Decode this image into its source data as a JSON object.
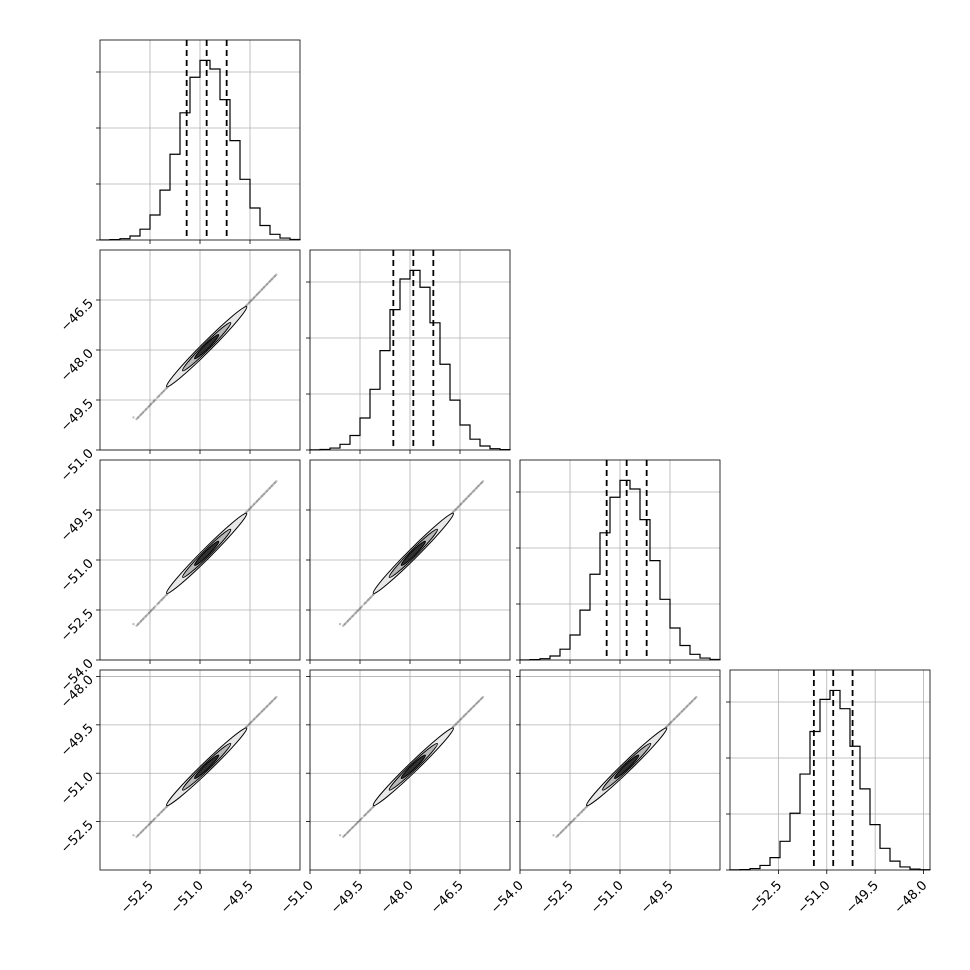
{
  "chart_data": {
    "type": "corner",
    "grid": true,
    "colors": {
      "hist": "#000000",
      "quantile": "#000000",
      "grid": "#b0b0b0",
      "density": "#000000"
    },
    "parameters": [
      {
        "range": [
          -54.0,
          -48.0
        ],
        "ticks": [
          -52.5,
          -51.0,
          -49.5
        ],
        "tick_labels": [
          "−52.5",
          "−51.0",
          "−49.5"
        ],
        "center": -50.8,
        "sigma": 0.6,
        "quantiles": [
          -51.4,
          -50.8,
          -50.2
        ]
      },
      {
        "range": [
          -51.0,
          -45.0
        ],
        "ticks": [
          -51.0,
          -49.5,
          -48.0,
          -46.5
        ],
        "tick_labels": [
          "−51.0",
          "−49.5",
          "−48.0",
          "−46.5"
        ],
        "center": -47.9,
        "sigma": 0.6,
        "quantiles": [
          -48.5,
          -47.9,
          -47.3
        ]
      },
      {
        "range": [
          -54.0,
          -48.0
        ],
        "ticks": [
          -54.0,
          -52.5,
          -51.0,
          -49.5
        ],
        "tick_labels": [
          "−54.0",
          "−52.5",
          "−51.0",
          "−49.5"
        ],
        "center": -50.8,
        "sigma": 0.6,
        "quantiles": [
          -51.4,
          -50.8,
          -50.2
        ]
      },
      {
        "range": [
          -54.0,
          -47.8
        ],
        "ticks": [
          -52.5,
          -51.0,
          -49.5,
          -48.0
        ],
        "tick_labels": [
          "−52.5",
          "−51.0",
          "−49.5",
          "−48.0"
        ],
        "center": -50.8,
        "sigma": 0.6,
        "quantiles": [
          -51.4,
          -50.8,
          -50.2
        ]
      }
    ],
    "row_axis_ticks": [
      null,
      {
        "ticks": [
          -49.5,
          -48.0,
          -46.5,
          -51.0
        ],
        "tick_labels": [
          "−49.5",
          "−48.0",
          "−46.5",
          "−51.0"
        ]
      },
      {
        "ticks": [
          -49.5,
          -51.0,
          -52.5,
          -54.0
        ],
        "tick_labels": [
          "−49.5",
          "−51.0",
          "−52.5",
          "−54.0"
        ]
      },
      {
        "ticks": [
          -48.0,
          -49.5,
          -51.0,
          -52.5
        ],
        "tick_labels": [
          "−48.0",
          "−49.5",
          "−51.0",
          "−52.5"
        ]
      }
    ],
    "histogram_bins": 20,
    "correlation": 0.99
  }
}
